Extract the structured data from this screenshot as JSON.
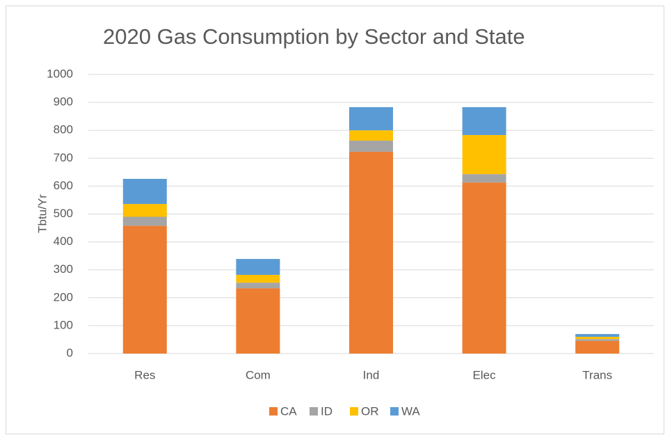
{
  "chart_data": {
    "type": "stacked_bar",
    "title": "2020 Gas Consumption by Sector and State",
    "y_label": "Tbtu/Yr",
    "categories": [
      "Res",
      "Com",
      "Ind",
      "Elec",
      "Trans"
    ],
    "series": [
      {
        "name": "CA",
        "color": "#ED7D31",
        "values": [
          458,
          234,
          723,
          613,
          45
        ]
      },
      {
        "name": "ID",
        "color": "#A5A5A5",
        "values": [
          32,
          20,
          40,
          30,
          7
        ]
      },
      {
        "name": "OR",
        "color": "#FFC000",
        "values": [
          46,
          28,
          37,
          140,
          8
        ]
      },
      {
        "name": "WA",
        "color": "#5B9BD5",
        "values": [
          90,
          57,
          83,
          100,
          10
        ]
      }
    ],
    "ylim": [
      0,
      1000
    ],
    "yticks": [
      0,
      100,
      200,
      300,
      400,
      500,
      600,
      700,
      800,
      900,
      1000
    ],
    "grid": true,
    "legend": "bottom"
  }
}
